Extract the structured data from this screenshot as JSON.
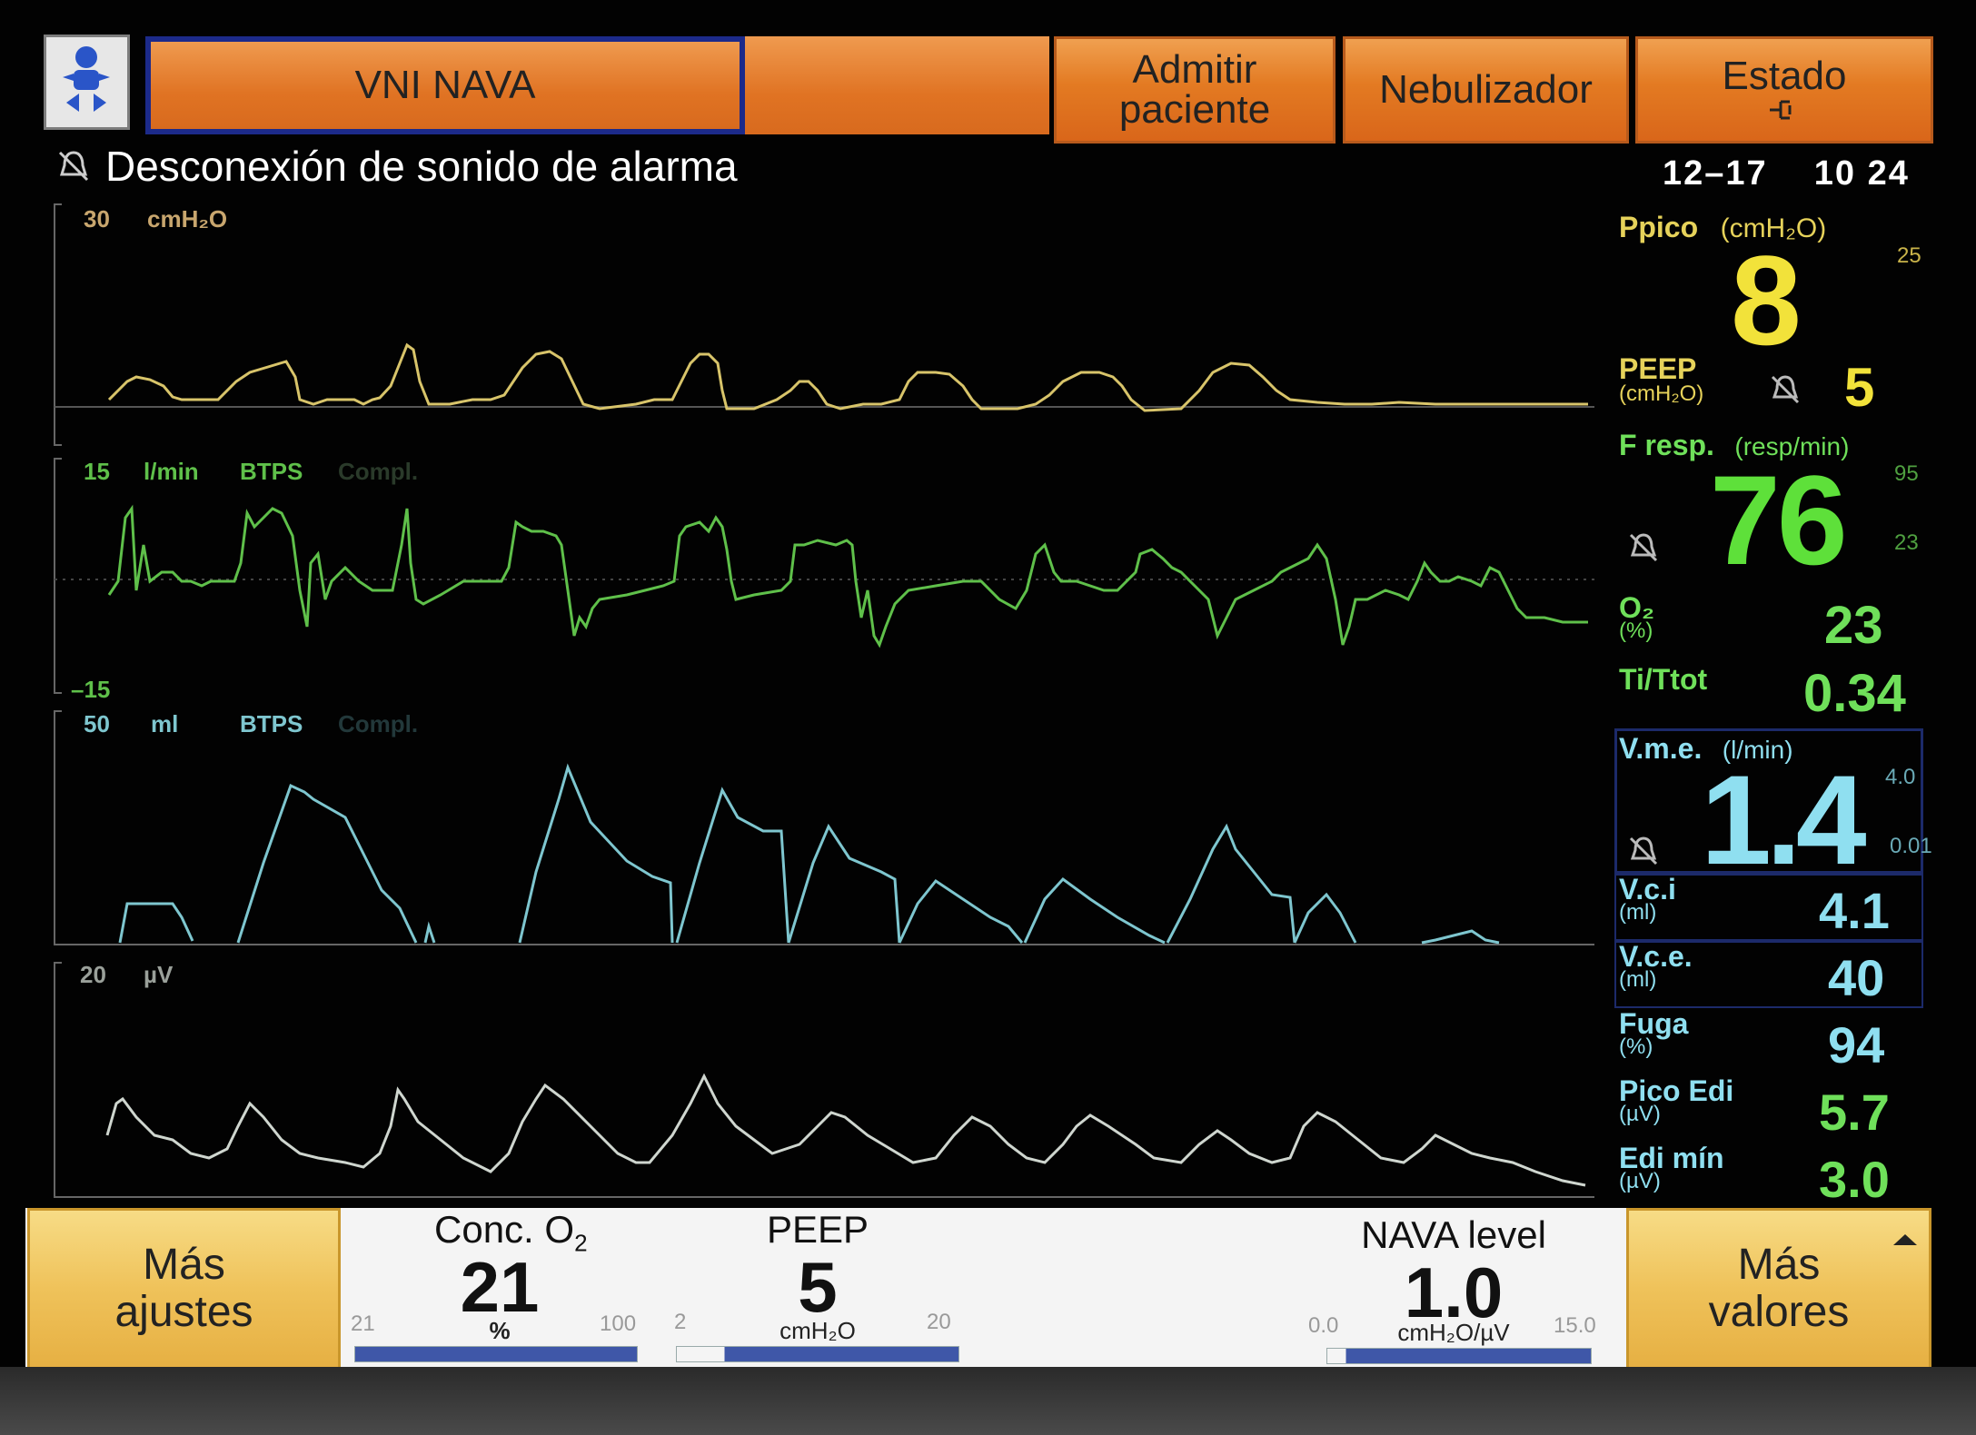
{
  "header": {
    "mode_label": "VNI NAVA",
    "buttons": [
      {
        "label": "Admitir\npaciente"
      },
      {
        "label": "Nebulizador"
      },
      {
        "label": "Estado"
      }
    ]
  },
  "alarm_status": {
    "text": "Desconexión de sonido de alarma"
  },
  "datetime": {
    "date": "12–17",
    "time": "10 24"
  },
  "waveforms": {
    "pressure": {
      "scale_max": "30",
      "unit": "cmH₂O"
    },
    "flow": {
      "scale_max": "15",
      "scale_min": "–15",
      "unit": "l/min",
      "mode": "BTPS",
      "extra": "Compl."
    },
    "volume": {
      "scale_max": "50",
      "unit": "ml",
      "mode": "BTPS",
      "extra": "Compl."
    },
    "edi": {
      "scale_max": "20",
      "unit": "µV"
    }
  },
  "values": {
    "ppico": {
      "label": "Ppico",
      "unit": "(cmH₂O)",
      "value": "8",
      "limit_hi": "25"
    },
    "peep": {
      "label": "PEEP",
      "unit": "(cmH₂O)",
      "value": "5"
    },
    "fresp": {
      "label": "F resp.",
      "unit": "(resp/min)",
      "value": "76",
      "limit_hi": "95",
      "limit_lo": "23"
    },
    "o2": {
      "label": "O₂",
      "unit": "(%)",
      "value": "23"
    },
    "titot": {
      "label": "Ti/Ttot",
      "value": "0.34"
    },
    "vme": {
      "label": "V.m.e.",
      "unit": "(l/min)",
      "value": "1.4",
      "limit_hi": "4.0",
      "limit_lo": "0.01"
    },
    "vci": {
      "label": "V.c.i",
      "unit": "(ml)",
      "value": "4.1"
    },
    "vce": {
      "label": "V.c.e.",
      "unit": "(ml)",
      "value": "40"
    },
    "fuga": {
      "label": "Fuga",
      "unit": "(%)",
      "value": "94"
    },
    "picoedi": {
      "label": "Pico Edi",
      "unit": "(µV)",
      "value": "5.7"
    },
    "edimin": {
      "label": "Edi mín",
      "unit": "(µV)",
      "value": "3.0"
    }
  },
  "controls": {
    "more_settings": "Más\najustes",
    "more_values": "Más\nvalores",
    "o2": {
      "title_main": "Conc. O",
      "title_sub": "2",
      "value": "21",
      "unit": "%",
      "min": "21",
      "max": "100",
      "level": 0.0
    },
    "peep": {
      "title": "PEEP",
      "value": "5",
      "unit": "cmH₂O",
      "min": "2",
      "max": "20",
      "level": 0.17
    },
    "nava": {
      "title": "NAVA level",
      "value": "1.0",
      "unit": "cmH₂O/µV",
      "min": "0.0",
      "max": "15.0",
      "level": 0.07
    }
  },
  "colors": {
    "pressure": "#d8c46a",
    "flow": "#5fc04a",
    "volume": "#7ec6cf",
    "edi": "#cfd6cf",
    "ppico_value": "#f2e23a",
    "fresp_value": "#5ee03a",
    "green_values": "#6fe05a",
    "vme_value": "#8fdff0"
  }
}
